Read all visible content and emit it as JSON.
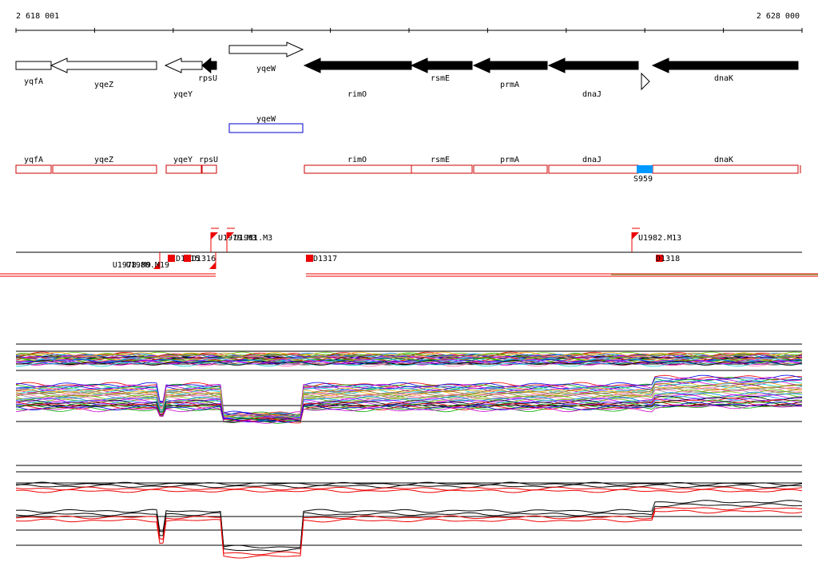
{
  "ruler": {
    "start": "2 618 001",
    "end": "2 628 000"
  },
  "genes": [
    "yqfA",
    "yqeZ",
    "yqeY",
    "rpsU",
    "yqeW",
    "rimO",
    "rsmE",
    "prmA",
    "dnaJ",
    "dnaK"
  ],
  "track2": [
    "yqeW"
  ],
  "track3": {
    "genes": [
      "yqfA",
      "yqeZ",
      "yqeY",
      "rpsU",
      "rimO",
      "rsmE",
      "prmA",
      "dnaJ",
      "dnaK"
    ],
    "site": "S959"
  },
  "features": [
    "U1979.M3",
    "U1981.M3",
    "U1982.M13",
    "U1978.M9",
    "U1980.M19",
    "D1315",
    "D1316",
    "D1317",
    "D1318"
  ]
}
